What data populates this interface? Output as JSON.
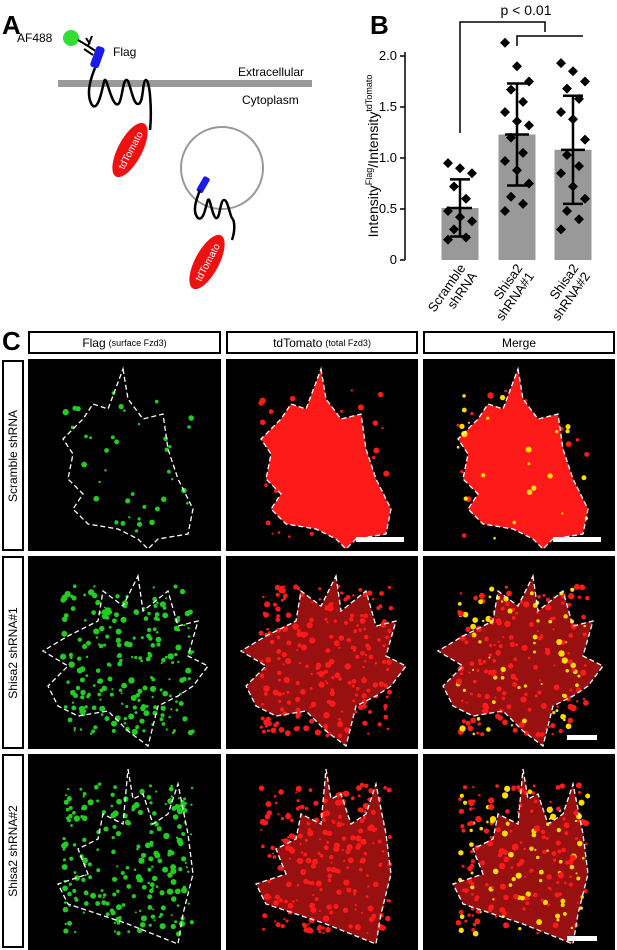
{
  "panels": {
    "a": "A",
    "b": "B",
    "c": "C"
  },
  "diagram_a": {
    "fluor_label": "AF488",
    "tag_label": "Flag",
    "extracellular_label": "Extracellular",
    "cytoplasm_label": "Cytoplasm",
    "protein_label_1": "tdTomato",
    "protein_label_2": "tdTomato",
    "colors": {
      "fluor": "#33dd33",
      "flag": "#1a1aee",
      "tdtomato": "#ee1111",
      "membrane": "#999999"
    }
  },
  "chart_data": {
    "type": "bar",
    "title": "",
    "annotation": "p < 0.01",
    "ylabel": "Intensity^Flag/Intensity^tdTomato",
    "ylabel_parts": {
      "base1": "Intensity",
      "sup1": "Flag",
      "sep": "/Intensity",
      "sup2": "tdTomato"
    },
    "ylim": [
      0,
      2.0
    ],
    "yticks": [
      "0",
      "0.5",
      "1.0",
      "1.5",
      "2.0"
    ],
    "categories": [
      [
        "Scramble",
        "shRNA"
      ],
      [
        "Shisa2",
        "shRNA#1"
      ],
      [
        "Shisa2",
        "shRNA#2"
      ]
    ],
    "values": [
      0.51,
      1.23,
      1.08
    ],
    "error_sd": [
      0.28,
      0.5,
      0.53
    ],
    "points": [
      [
        0.95,
        0.9,
        0.85,
        0.72,
        0.6,
        0.48,
        0.42,
        0.38,
        0.3,
        0.22,
        0.2
      ],
      [
        2.13,
        1.9,
        1.75,
        1.67,
        1.55,
        1.45,
        1.36,
        1.32,
        1.2,
        1.05,
        0.97,
        0.88,
        0.75,
        0.62,
        0.55,
        0.48
      ],
      [
        1.93,
        1.85,
        1.75,
        1.68,
        1.58,
        1.45,
        1.38,
        1.18,
        1.03,
        0.92,
        0.85,
        0.72,
        0.6,
        0.48,
        0.4,
        0.3
      ]
    ],
    "colors": {
      "bar": "#999999",
      "point": "#000000",
      "error": "#000000"
    }
  },
  "panel_c": {
    "columns": [
      {
        "main": "Flag",
        "sub": "(surface Fzd3)"
      },
      {
        "main": "tdTomato",
        "sub": "(total Fzd3)"
      },
      {
        "main": "Merge",
        "sub": ""
      }
    ],
    "rows": [
      "Scramble shRNA",
      "Shisa2 shRNA#1",
      "Shisa2 shRNA#2"
    ],
    "colors": {
      "flag": "#22cc22",
      "tdtomato": "#ff1a1a",
      "merge": "#ffdd00",
      "outline": "#ffffff"
    }
  }
}
